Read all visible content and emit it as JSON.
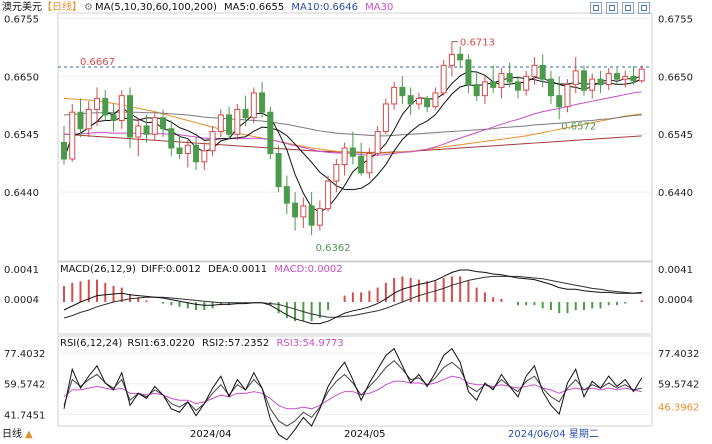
{
  "header": {
    "symbol": "澳元美元",
    "period": "【日线】",
    "ma_label": "MA(5,10,30,60,100,200)",
    "ma5": "MA5:0.6655",
    "ma10": "MA10:0.6646",
    "ma30": "MA30"
  },
  "macd_header": {
    "label": "MACD(26,12,9)",
    "diff": "DIFF:0.0012",
    "dea": "DEA:0.0011",
    "macd": "MACD:0.0002"
  },
  "rsi_header": {
    "label": "RSI(6,12,24)",
    "rsi1": "RSI1:63.0220",
    "rsi2": "RSI2:57.2352",
    "rsi3": "RSI3:54.9773"
  },
  "footer": {
    "left_label": "日线",
    "dates": [
      "2024/04",
      "2024/05"
    ],
    "cursor_date": "2024/06/04 星期二"
  },
  "colors": {
    "up": "#d64b4b",
    "down": "#4c9a4c",
    "ma5": "#111111",
    "ma10": "#111111",
    "ma30": "#c94fc9",
    "ma60": "#7b7b7b",
    "ma100": "#e3912b",
    "ma200": "#a23a3a",
    "label_red": "#d64b4b",
    "label_green": "#4c9a4c",
    "header_blue": "#2a4fa8",
    "magenta": "#c94fc9"
  },
  "chart_data": [
    {
      "type": "candlestick",
      "y_ticks": [
        "0.6755",
        "0.6650",
        "0.6545",
        "0.6440"
      ],
      "ylim": [
        0.6315,
        0.6765
      ],
      "ref_line": 0.6667,
      "annotations": [
        {
          "text": "0.6667",
          "color": "red"
        },
        {
          "text": "0.6713",
          "color": "red"
        },
        {
          "text": "0.6362",
          "color": "green"
        },
        {
          "text": "0.6572",
          "color": "green"
        }
      ],
      "ohlc": [
        [
          0.653,
          0.656,
          0.649,
          0.65
        ],
        [
          0.65,
          0.66,
          0.6495,
          0.6585
        ],
        [
          0.6585,
          0.661,
          0.654,
          0.6555
        ],
        [
          0.6555,
          0.6605,
          0.654,
          0.659
        ],
        [
          0.659,
          0.663,
          0.656,
          0.661
        ],
        [
          0.661,
          0.6625,
          0.657,
          0.658
        ],
        [
          0.658,
          0.66,
          0.655,
          0.657
        ],
        [
          0.657,
          0.6625,
          0.6555,
          0.6615
        ],
        [
          0.6615,
          0.663,
          0.652,
          0.654
        ],
        [
          0.654,
          0.6575,
          0.6505,
          0.656
        ],
        [
          0.656,
          0.658,
          0.653,
          0.6545
        ],
        [
          0.6545,
          0.6585,
          0.6535,
          0.6575
        ],
        [
          0.6575,
          0.659,
          0.654,
          0.6555
        ],
        [
          0.6555,
          0.657,
          0.6505,
          0.652
        ],
        [
          0.652,
          0.6545,
          0.65,
          0.651
        ],
        [
          0.651,
          0.6535,
          0.6485,
          0.6525
        ],
        [
          0.6525,
          0.654,
          0.648,
          0.6495
        ],
        [
          0.6495,
          0.653,
          0.648,
          0.6515
        ],
        [
          0.6515,
          0.656,
          0.6505,
          0.655
        ],
        [
          0.655,
          0.659,
          0.654,
          0.658
        ],
        [
          0.658,
          0.6595,
          0.6535,
          0.6545
        ],
        [
          0.6545,
          0.66,
          0.6535,
          0.659
        ],
        [
          0.659,
          0.6615,
          0.656,
          0.6575
        ],
        [
          0.6575,
          0.663,
          0.6565,
          0.662
        ],
        [
          0.662,
          0.664,
          0.6575,
          0.6585
        ],
        [
          0.6585,
          0.6595,
          0.65,
          0.651
        ],
        [
          0.651,
          0.6525,
          0.644,
          0.645
        ],
        [
          0.645,
          0.647,
          0.64,
          0.642
        ],
        [
          0.642,
          0.644,
          0.637,
          0.6395
        ],
        [
          0.6395,
          0.643,
          0.6375,
          0.6415
        ],
        [
          0.6415,
          0.644,
          0.6362,
          0.638
        ],
        [
          0.638,
          0.6425,
          0.637,
          0.641
        ],
        [
          0.641,
          0.647,
          0.6405,
          0.646
        ],
        [
          0.646,
          0.65,
          0.644,
          0.649
        ],
        [
          0.649,
          0.653,
          0.647,
          0.652
        ],
        [
          0.652,
          0.655,
          0.649,
          0.6505
        ],
        [
          0.6505,
          0.653,
          0.647,
          0.6475
        ],
        [
          0.6475,
          0.652,
          0.6465,
          0.651
        ],
        [
          0.651,
          0.656,
          0.6505,
          0.655
        ],
        [
          0.655,
          0.661,
          0.6545,
          0.66
        ],
        [
          0.66,
          0.664,
          0.659,
          0.663
        ],
        [
          0.663,
          0.665,
          0.66,
          0.6615
        ],
        [
          0.6615,
          0.663,
          0.658,
          0.66
        ],
        [
          0.66,
          0.662,
          0.659,
          0.661
        ],
        [
          0.661,
          0.6615,
          0.6585,
          0.6595
        ],
        [
          0.6595,
          0.663,
          0.659,
          0.662
        ],
        [
          0.662,
          0.668,
          0.6615,
          0.667
        ],
        [
          0.667,
          0.6713,
          0.665,
          0.669
        ],
        [
          0.669,
          0.6705,
          0.6665,
          0.668
        ],
        [
          0.668,
          0.669,
          0.662,
          0.6635
        ],
        [
          0.6635,
          0.666,
          0.6605,
          0.6615
        ],
        [
          0.6615,
          0.665,
          0.66,
          0.664
        ],
        [
          0.664,
          0.667,
          0.662,
          0.663
        ],
        [
          0.663,
          0.6665,
          0.661,
          0.6655
        ],
        [
          0.6655,
          0.6675,
          0.663,
          0.664
        ],
        [
          0.664,
          0.665,
          0.661,
          0.6625
        ],
        [
          0.6625,
          0.666,
          0.6615,
          0.665
        ],
        [
          0.665,
          0.6685,
          0.6635,
          0.667
        ],
        [
          0.667,
          0.669,
          0.663,
          0.6645
        ],
        [
          0.6645,
          0.666,
          0.66,
          0.6615
        ],
        [
          0.6615,
          0.665,
          0.6572,
          0.6595
        ],
        [
          0.6595,
          0.6645,
          0.6585,
          0.6635
        ],
        [
          0.6635,
          0.6685,
          0.662,
          0.666
        ],
        [
          0.666,
          0.667,
          0.6615,
          0.6625
        ],
        [
          0.6625,
          0.6655,
          0.661,
          0.6645
        ],
        [
          0.6645,
          0.666,
          0.662,
          0.6635
        ],
        [
          0.6635,
          0.6665,
          0.6625,
          0.6655
        ],
        [
          0.6655,
          0.6665,
          0.6635,
          0.6645
        ],
        [
          0.6645,
          0.666,
          0.663,
          0.665
        ],
        [
          0.665,
          0.6668,
          0.6635,
          0.6642
        ],
        [
          0.6642,
          0.667,
          0.6638,
          0.6663
        ]
      ],
      "ma30": [
        0.6545,
        0.6545,
        0.6546,
        0.6547,
        0.6548,
        0.6548,
        0.6547,
        0.6547,
        0.6547,
        0.6547,
        0.6546,
        0.6546,
        0.6546,
        0.6545,
        0.6544,
        0.6542,
        0.654,
        0.6538,
        0.6537,
        0.6537,
        0.6537,
        0.6537,
        0.6537,
        0.6538,
        0.6537,
        0.6535,
        0.6532,
        0.6528,
        0.6524,
        0.6521,
        0.6517,
        0.6514,
        0.6512,
        0.6511,
        0.6511,
        0.651,
        0.6508,
        0.6507,
        0.6507,
        0.6508,
        0.651,
        0.6512,
        0.6513,
        0.6515,
        0.6518,
        0.6522,
        0.6527,
        0.6533,
        0.6538,
        0.6543,
        0.6548,
        0.6553,
        0.6558,
        0.6563,
        0.6568,
        0.6572,
        0.6577,
        0.6582,
        0.6586,
        0.6589,
        0.6592,
        0.6595,
        0.6599,
        0.6602,
        0.6605,
        0.6608,
        0.6611,
        0.6614,
        0.6617,
        0.662,
        0.6622
      ],
      "ma60": [
        0.658,
        0.6581,
        0.6582,
        0.6583,
        0.6584,
        0.6584,
        0.6585,
        0.6585,
        0.6585,
        0.6585,
        0.6584,
        0.6584,
        0.6583,
        0.6582,
        0.6581,
        0.658,
        0.6578,
        0.6576,
        0.6575,
        0.6574,
        0.6573,
        0.6572,
        0.6571,
        0.657,
        0.6569,
        0.6567,
        0.6565,
        0.6563,
        0.656,
        0.6557,
        0.6554,
        0.6551,
        0.6549,
        0.6547,
        0.6546,
        0.6545,
        0.6544,
        0.6543,
        0.6542,
        0.6542,
        0.6543,
        0.6544,
        0.6545,
        0.6546,
        0.6547,
        0.6548,
        0.6549,
        0.655,
        0.6551,
        0.6552,
        0.6553,
        0.6554,
        0.6555,
        0.6557,
        0.6558,
        0.6559,
        0.656,
        0.6562,
        0.6563,
        0.6564,
        0.6565,
        0.6566,
        0.6568,
        0.6569,
        0.657,
        0.6572,
        0.6573,
        0.6575,
        0.6577,
        0.6579,
        0.658
      ],
      "ma100": [
        0.661,
        0.6609,
        0.6608,
        0.6607,
        0.6605,
        0.6603,
        0.6601,
        0.6598,
        0.6595,
        0.6592,
        0.6589,
        0.6586,
        0.6582,
        0.6578,
        0.6574,
        0.657,
        0.6566,
        0.6562,
        0.6558,
        0.6554,
        0.655,
        0.6547,
        0.6544,
        0.6541,
        0.6538,
        0.6535,
        0.6532,
        0.6529,
        0.6526,
        0.6523,
        0.652,
        0.6518,
        0.6516,
        0.6514,
        0.6513,
        0.6512,
        0.6511,
        0.6511,
        0.6511,
        0.6511,
        0.6512,
        0.6513,
        0.6514,
        0.6516,
        0.6518,
        0.652,
        0.6522,
        0.6524,
        0.6526,
        0.6528,
        0.653,
        0.6532,
        0.6534,
        0.6536,
        0.6538,
        0.654,
        0.6542,
        0.6545,
        0.6548,
        0.6551,
        0.6554,
        0.6557,
        0.656,
        0.6563,
        0.6566,
        0.6569,
        0.6572,
        0.6575,
        0.6578,
        0.658,
        0.6582
      ],
      "ma200": [
        0.6545,
        0.6544,
        0.6543,
        0.6542,
        0.6541,
        0.654,
        0.6539,
        0.6538,
        0.6537,
        0.6536,
        0.6535,
        0.6534,
        0.6533,
        0.6532,
        0.6531,
        0.653,
        0.6529,
        0.6528,
        0.6527,
        0.6526,
        0.6525,
        0.6524,
        0.6523,
        0.6522,
        0.6521,
        0.652,
        0.6519,
        0.6518,
        0.6517,
        0.6516,
        0.6515,
        0.6514,
        0.6514,
        0.6513,
        0.6513,
        0.6513,
        0.6512,
        0.6512,
        0.6512,
        0.6512,
        0.6513,
        0.6513,
        0.6514,
        0.6515,
        0.6516,
        0.6517,
        0.6518,
        0.6519,
        0.652,
        0.6521,
        0.6522,
        0.6523,
        0.6524,
        0.6525,
        0.6526,
        0.6527,
        0.6528,
        0.6529,
        0.653,
        0.6531,
        0.6532,
        0.6533,
        0.6534,
        0.6535,
        0.6536,
        0.6537,
        0.6538,
        0.6539,
        0.654,
        0.6541,
        0.6542
      ]
    },
    {
      "type": "macd",
      "y_ticks": [
        "0.0041",
        "0.0004"
      ],
      "ylim": [
        -0.004,
        0.005
      ],
      "diff": [
        -0.001,
        -0.0005,
        0.0,
        0.0004,
        0.0008,
        0.0009,
        0.001,
        0.0011,
        0.0009,
        0.0008,
        0.0007,
        0.0006,
        0.0005,
        0.0003,
        0.0001,
        -0.0001,
        -0.0003,
        -0.0004,
        -0.0004,
        -0.0003,
        -0.0003,
        -0.0002,
        -0.0002,
        -0.0001,
        -0.0001,
        -0.0004,
        -0.001,
        -0.0016,
        -0.0021,
        -0.0024,
        -0.0027,
        -0.0027,
        -0.0024,
        -0.0019,
        -0.0014,
        -0.0011,
        -0.0009,
        -0.0006,
        -0.0002,
        0.0004,
        0.0011,
        0.0016,
        0.0019,
        0.0022,
        0.0024,
        0.0027,
        0.0032,
        0.0037,
        0.004,
        0.004,
        0.0038,
        0.0037,
        0.0035,
        0.0034,
        0.0032,
        0.003,
        0.0029,
        0.0028,
        0.0025,
        0.0022,
        0.0018,
        0.0016,
        0.0016,
        0.0014,
        0.0013,
        0.0012,
        0.0012,
        0.0011,
        0.0011,
        0.0011,
        0.0012
      ],
      "dea": [
        -0.002,
        -0.0017,
        -0.0013,
        -0.001,
        -0.0006,
        -0.0003,
        0.0,
        0.0002,
        0.0004,
        0.0005,
        0.0006,
        0.0006,
        0.0006,
        0.0005,
        0.0004,
        0.0003,
        0.0002,
        0.0001,
        0.0,
        -0.0001,
        -0.0001,
        -0.0001,
        -0.0001,
        -0.0001,
        -0.0001,
        -0.0002,
        -0.0003,
        -0.0006,
        -0.0009,
        -0.0012,
        -0.0015,
        -0.0017,
        -0.0019,
        -0.0019,
        -0.0018,
        -0.0017,
        -0.0015,
        -0.0013,
        -0.0011,
        -0.0008,
        -0.0004,
        0.0,
        0.0004,
        0.0008,
        0.0011,
        0.0014,
        0.0017,
        0.0021,
        0.0024,
        0.0027,
        0.0029,
        0.0031,
        0.0032,
        0.0032,
        0.0032,
        0.0032,
        0.0031,
        0.003,
        0.0029,
        0.0027,
        0.0025,
        0.0023,
        0.0021,
        0.0019,
        0.0017,
        0.0016,
        0.0014,
        0.0013,
        0.0012,
        0.0011,
        0.0011
      ]
    },
    {
      "type": "rsi",
      "y_ticks_left": [
        "77.4032",
        "59.5742",
        "41.7451"
      ],
      "y_ticks_right": [
        "77.4032",
        "59.5742",
        "46.3962"
      ],
      "ylim": [
        35,
        85
      ],
      "rsi1": [
        45,
        68,
        57,
        64,
        70,
        60,
        56,
        66,
        47,
        54,
        51,
        58,
        53,
        45,
        43,
        49,
        41,
        48,
        57,
        64,
        52,
        62,
        56,
        66,
        57,
        39,
        30,
        27,
        33,
        40,
        35,
        45,
        58,
        66,
        72,
        62,
        50,
        60,
        68,
        76,
        80,
        70,
        60,
        65,
        58,
        66,
        76,
        80,
        72,
        55,
        50,
        60,
        56,
        65,
        58,
        52,
        64,
        70,
        55,
        47,
        42,
        60,
        68,
        52,
        61,
        57,
        64,
        58,
        62,
        55,
        63
      ],
      "rsi2": [
        47,
        62,
        58,
        62,
        65,
        60,
        57,
        62,
        50,
        54,
        52,
        56,
        53,
        48,
        46,
        49,
        44,
        48,
        54,
        59,
        53,
        59,
        56,
        62,
        57,
        45,
        38,
        35,
        38,
        43,
        40,
        46,
        55,
        61,
        65,
        60,
        53,
        58,
        63,
        69,
        73,
        68,
        62,
        63,
        59,
        63,
        69,
        72,
        68,
        58,
        55,
        59,
        57,
        62,
        58,
        55,
        61,
        64,
        57,
        52,
        49,
        57,
        62,
        56,
        59,
        57,
        60,
        57,
        59,
        56,
        57
      ],
      "rsi3": [
        52,
        56,
        56,
        57,
        58,
        57,
        56,
        57,
        54,
        54,
        53,
        54,
        53,
        51,
        50,
        50,
        48,
        49,
        51,
        53,
        52,
        54,
        54,
        55,
        54,
        51,
        47,
        45,
        45,
        46,
        45,
        47,
        50,
        53,
        55,
        55,
        53,
        54,
        56,
        59,
        61,
        61,
        60,
        60,
        59,
        60,
        62,
        64,
        63,
        60,
        59,
        59,
        58,
        59,
        58,
        57,
        58,
        59,
        57,
        56,
        54,
        56,
        57,
        56,
        57,
        56,
        57,
        56,
        57,
        56,
        55
      ]
    }
  ]
}
